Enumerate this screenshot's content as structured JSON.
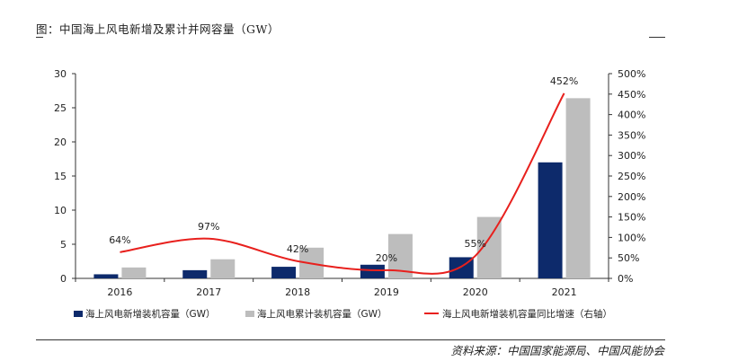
{
  "figure": {
    "caption": "图：中国海上风电新增及累计并网容量（GW）",
    "source": "资料来源：中国国家能源局、中国风能协会"
  },
  "chart_data": {
    "type": "bar",
    "categories": [
      "2016",
      "2017",
      "2018",
      "2019",
      "2020",
      "2021"
    ],
    "series": [
      {
        "name": "海上风电新增装机容量（GW）",
        "type": "bar",
        "axis": "left",
        "color": "#0d2a6b",
        "values": [
          0.6,
          1.2,
          1.7,
          2.0,
          3.1,
          17.0
        ]
      },
      {
        "name": "海上风电累计装机容量（GW）",
        "type": "bar",
        "axis": "left",
        "color": "#bdbdbd",
        "values": [
          1.6,
          2.8,
          4.5,
          6.5,
          9.0,
          26.4
        ]
      },
      {
        "name": "海上风电新增装机容量同比增速（右轴）",
        "type": "line",
        "axis": "right",
        "color": "#e8201d",
        "values": [
          64,
          97,
          42,
          20,
          55,
          452
        ],
        "labels": [
          "64%",
          "97%",
          "42%",
          "20%",
          "55%",
          "452%"
        ]
      }
    ],
    "y_left": {
      "min": 0,
      "max": 30,
      "ticks": [
        0,
        5,
        10,
        15,
        20,
        25,
        30
      ]
    },
    "y_right": {
      "min": 0,
      "max": 500,
      "ticks": [
        "0%",
        "50%",
        "100%",
        "150%",
        "200%",
        "250%",
        "300%",
        "350%",
        "400%",
        "450%",
        "500%"
      ]
    },
    "legend_position": "bottom"
  }
}
